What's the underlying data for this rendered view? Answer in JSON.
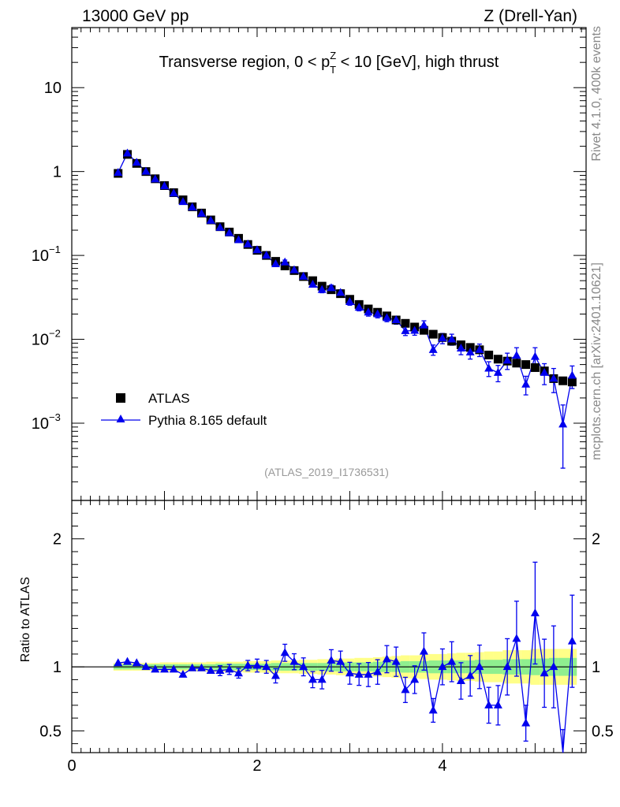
{
  "header": {
    "left": "13000 GeV pp",
    "right": "Z (Drell-Yan)"
  },
  "side_labels": {
    "rivet": "Rivet 4.1.0,  400k events",
    "source": "mcplots.cern.ch [arXiv:2401.10621]"
  },
  "chart_data": {
    "type": "scatter",
    "title": "Transverse region, 0 < p_T^Z < 10 [GeV], high thrust",
    "title_parts": {
      "prefix": "Transverse region, 0 < p",
      "sup": "Z",
      "sub": "T",
      "suffix": " < 10 [GeV], high thrust"
    },
    "analysis_id": "(ATLAS_2019_I1736531)",
    "xlim": [
      0,
      5.55
    ],
    "main_panel": {
      "yscale": "log",
      "ylim": [
        0.00012,
        52
      ],
      "y_tick_labels": [
        {
          "value": 10,
          "mantissa": "10",
          "exp": ""
        },
        {
          "value": 1,
          "mantissa": "1",
          "exp": ""
        },
        {
          "value": 0.1,
          "mantissa": "10",
          "exp": "−1"
        },
        {
          "value": 0.01,
          "mantissa": "10",
          "exp": "−2"
        },
        {
          "value": 0.001,
          "mantissa": "10",
          "exp": "−3"
        }
      ]
    },
    "ratio_panel": {
      "ylabel": "Ratio to ATLAS",
      "ylim": [
        0.33,
        2.3
      ],
      "y_tick_labels": [
        {
          "value": 2,
          "label": "2"
        },
        {
          "value": 1,
          "label": "1"
        },
        {
          "value": 0.5,
          "label": "0.5"
        }
      ]
    },
    "x_tick_labels": [
      {
        "value": 0,
        "label": "0"
      },
      {
        "value": 2,
        "label": "2"
      },
      {
        "value": 4,
        "label": "4"
      }
    ],
    "legend": {
      "position": "lower-left",
      "entries": [
        {
          "label": "ATLAS",
          "marker": "square",
          "color": "#000000"
        },
        {
          "label": "Pythia 8.165 default",
          "marker": "triangle",
          "color": "#0000ee"
        }
      ]
    },
    "x": [
      0.5,
      0.6,
      0.7,
      0.8,
      0.9,
      1.0,
      1.1,
      1.2,
      1.3,
      1.4,
      1.5,
      1.6,
      1.7,
      1.8,
      1.9,
      2.0,
      2.1,
      2.2,
      2.3,
      2.4,
      2.5,
      2.6,
      2.7,
      2.8,
      2.9,
      3.0,
      3.1,
      3.2,
      3.3,
      3.4,
      3.5,
      3.6,
      3.7,
      3.8,
      3.9,
      4.0,
      4.1,
      4.2,
      4.3,
      4.4,
      4.5,
      4.6,
      4.7,
      4.8,
      4.9,
      5.0,
      5.1,
      5.2,
      5.3,
      5.4
    ],
    "series": [
      {
        "name": "ATLAS",
        "values": [
          0.95,
          1.6,
          1.25,
          1.0,
          0.82,
          0.68,
          0.56,
          0.46,
          0.38,
          0.32,
          0.265,
          0.22,
          0.19,
          0.16,
          0.135,
          0.115,
          0.1,
          0.085,
          0.075,
          0.066,
          0.056,
          0.05,
          0.043,
          0.039,
          0.035,
          0.03,
          0.026,
          0.023,
          0.021,
          0.019,
          0.017,
          0.0155,
          0.014,
          0.0128,
          0.0115,
          0.0105,
          0.0095,
          0.0086,
          0.008,
          0.0075,
          0.0065,
          0.0058,
          0.0055,
          0.0052,
          0.005,
          0.0046,
          0.0042,
          0.0034,
          0.0032,
          0.0031
        ]
      },
      {
        "name": "Pythia 8.165 default",
        "values": [
          0.97,
          1.65,
          1.28,
          1.0,
          0.81,
          0.67,
          0.55,
          0.435,
          0.375,
          0.315,
          0.26,
          0.215,
          0.185,
          0.153,
          0.136,
          0.116,
          0.1,
          0.079,
          0.083,
          0.067,
          0.056,
          0.045,
          0.039,
          0.041,
          0.036,
          0.028,
          0.024,
          0.021,
          0.02,
          0.018,
          0.017,
          0.0126,
          0.0127,
          0.0147,
          0.0075,
          0.0103,
          0.01,
          0.0078,
          0.007,
          0.0075,
          0.0045,
          0.004,
          0.0056,
          0.0064,
          0.0029,
          0.0062,
          0.004,
          0.0034,
          0.00097,
          0.0037
        ],
        "rel_err": [
          0.02,
          0.02,
          0.02,
          0.02,
          0.02,
          0.02,
          0.02,
          0.03,
          0.03,
          0.03,
          0.03,
          0.04,
          0.04,
          0.04,
          0.04,
          0.05,
          0.05,
          0.06,
          0.06,
          0.06,
          0.07,
          0.07,
          0.08,
          0.08,
          0.08,
          0.09,
          0.09,
          0.1,
          0.1,
          0.1,
          0.11,
          0.12,
          0.12,
          0.13,
          0.14,
          0.14,
          0.15,
          0.16,
          0.17,
          0.17,
          0.2,
          0.22,
          0.22,
          0.24,
          0.25,
          0.28,
          0.28,
          0.32,
          0.7,
          0.3
        ]
      }
    ],
    "ratio": {
      "values": [
        1.03,
        1.04,
        1.03,
        1.0,
        0.98,
        0.98,
        0.98,
        0.94,
        0.99,
        0.99,
        0.97,
        0.97,
        0.98,
        0.95,
        1.01,
        1.01,
        1.0,
        0.93,
        1.11,
        1.04,
        1.0,
        0.9,
        0.9,
        1.05,
        1.04,
        0.95,
        0.94,
        0.94,
        0.96,
        1.06,
        1.04,
        0.82,
        0.9,
        1.12,
        0.66,
        1.0,
        1.04,
        0.89,
        0.93,
        1.0,
        0.7,
        0.7,
        1.0,
        1.22,
        0.56,
        1.42,
        0.95,
        1.0,
        0.3,
        1.2
      ]
    }
  },
  "colors": {
    "data": "#000000",
    "mc": "#0000ee",
    "band_inner": "#8fef8f",
    "band_outer": "#ffff88"
  }
}
